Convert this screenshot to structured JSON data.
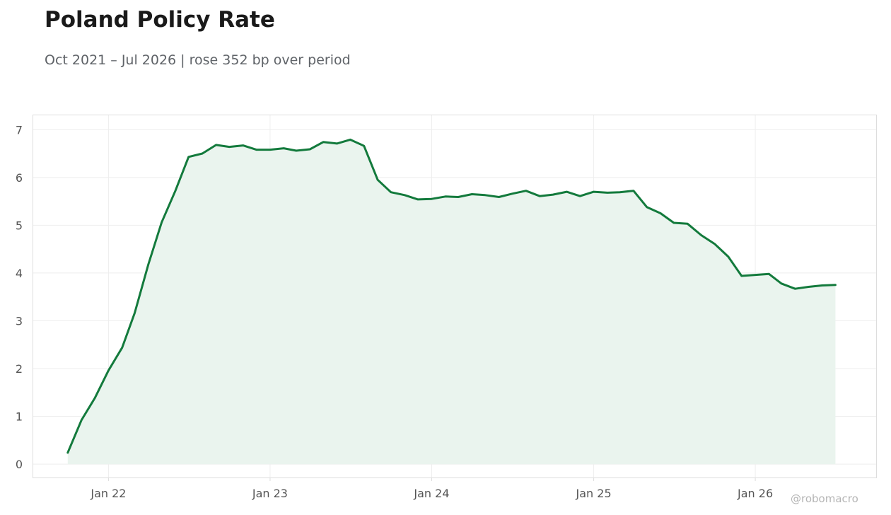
{
  "title": "Poland Policy Rate",
  "subtitle": "Oct 2021 – Jul 2026 | rose 352 bp over period",
  "watermark": "@robomacro",
  "colors": {
    "line": "#137a3c",
    "fill": "#eaf4ee",
    "grid": "#eeeeee",
    "frame": "#dddddd",
    "text": "#555555"
  },
  "chart_data": {
    "type": "area",
    "title": "Poland Policy Rate",
    "subtitle": "Oct 2021 – Jul 2026 | rose 352 bp over period",
    "xlabel": "",
    "ylabel": "",
    "x_range": [
      "2021-07-15",
      "2026-10-01"
    ],
    "ylim": [
      -0.28,
      7.3
    ],
    "grid": true,
    "legend": "none",
    "x_ticks": [
      {
        "date": "2022-01-01",
        "label": "Jan 22"
      },
      {
        "date": "2023-01-01",
        "label": "Jan 23"
      },
      {
        "date": "2024-01-01",
        "label": "Jan 24"
      },
      {
        "date": "2025-01-01",
        "label": "Jan 25"
      },
      {
        "date": "2026-01-01",
        "label": "Jan 26"
      }
    ],
    "y_ticks": [
      0,
      1,
      2,
      3,
      4,
      5,
      6,
      7
    ],
    "series": [
      {
        "x": [
          "2021-10-01",
          "2021-11-01",
          "2021-12-01",
          "2022-01-01",
          "2022-02-01",
          "2022-03-01",
          "2022-04-01",
          "2022-05-01",
          "2022-06-01",
          "2022-07-01",
          "2022-08-01",
          "2022-09-01",
          "2022-10-01",
          "2022-11-01",
          "2022-12-01",
          "2023-01-01",
          "2023-02-01",
          "2023-03-01",
          "2023-04-01",
          "2023-05-01",
          "2023-06-01",
          "2023-07-01",
          "2023-08-01",
          "2023-09-01",
          "2023-10-01",
          "2023-11-01",
          "2023-12-01",
          "2024-01-01",
          "2024-02-01",
          "2024-03-01",
          "2024-04-01",
          "2024-05-01",
          "2024-06-01",
          "2024-07-01",
          "2024-08-01",
          "2024-09-01",
          "2024-10-01",
          "2024-11-01",
          "2024-12-01",
          "2025-01-01",
          "2025-02-01",
          "2025-03-01",
          "2025-04-01",
          "2025-05-01",
          "2025-06-01",
          "2025-07-01",
          "2025-08-01",
          "2025-09-01",
          "2025-10-01",
          "2025-11-01",
          "2025-12-01",
          "2026-01-01",
          "2026-02-01",
          "2026-03-01",
          "2026-04-01",
          "2026-05-01",
          "2026-06-01",
          "2026-07-01"
        ],
        "values": [
          0.24,
          0.92,
          1.38,
          1.96,
          2.44,
          3.16,
          4.18,
          5.06,
          5.72,
          6.43,
          6.5,
          6.68,
          6.64,
          6.67,
          6.58,
          6.58,
          6.61,
          6.56,
          6.59,
          6.74,
          6.71,
          6.79,
          6.66,
          5.95,
          5.69,
          5.63,
          5.54,
          5.55,
          5.6,
          5.59,
          5.65,
          5.63,
          5.59,
          5.66,
          5.72,
          5.61,
          5.64,
          5.7,
          5.61,
          5.7,
          5.68,
          5.69,
          5.72,
          5.38,
          5.25,
          5.05,
          5.03,
          4.79,
          4.61,
          4.34,
          3.94,
          3.96,
          3.98,
          3.78,
          3.67,
          3.71,
          3.74,
          3.75
        ]
      }
    ]
  }
}
